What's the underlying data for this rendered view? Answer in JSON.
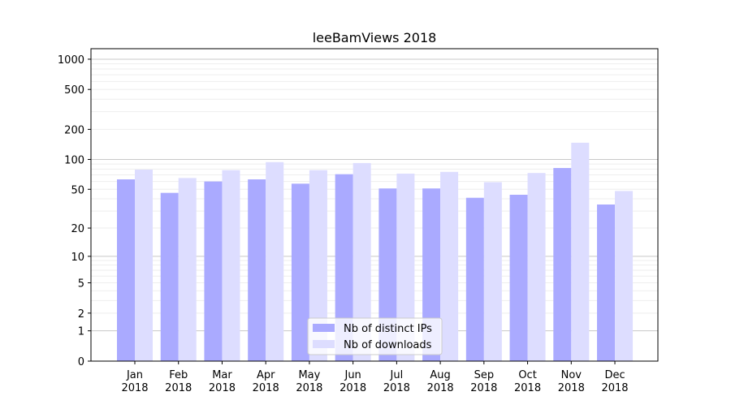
{
  "chart_data": {
    "type": "bar",
    "title": "leeBamViews 2018",
    "xlabel": "",
    "ylabel": "",
    "yscale": "symlog",
    "ylim": [
      0,
      1200
    ],
    "yticks": [
      0,
      1,
      2,
      5,
      10,
      20,
      50,
      100,
      200,
      500,
      1000
    ],
    "grid": true,
    "legend_position": "bottom-center",
    "categories": [
      "Jan\n2018",
      "Feb\n2018",
      "Mar\n2018",
      "Apr\n2018",
      "May\n2018",
      "Jun\n2018",
      "Jul\n2018",
      "Aug\n2018",
      "Sep\n2018",
      "Oct\n2018",
      "Nov\n2018",
      "Dec\n2018"
    ],
    "series": [
      {
        "name": "Nb of distinct IPs",
        "color": "#aaaaff",
        "values": [
          63,
          46,
          60,
          63,
          57,
          71,
          51,
          51,
          41,
          44,
          82,
          35
        ]
      },
      {
        "name": "Nb of downloads",
        "color": "#ddddff",
        "values": [
          79,
          65,
          78,
          94,
          78,
          92,
          72,
          75,
          59,
          73,
          147,
          48
        ]
      }
    ]
  }
}
